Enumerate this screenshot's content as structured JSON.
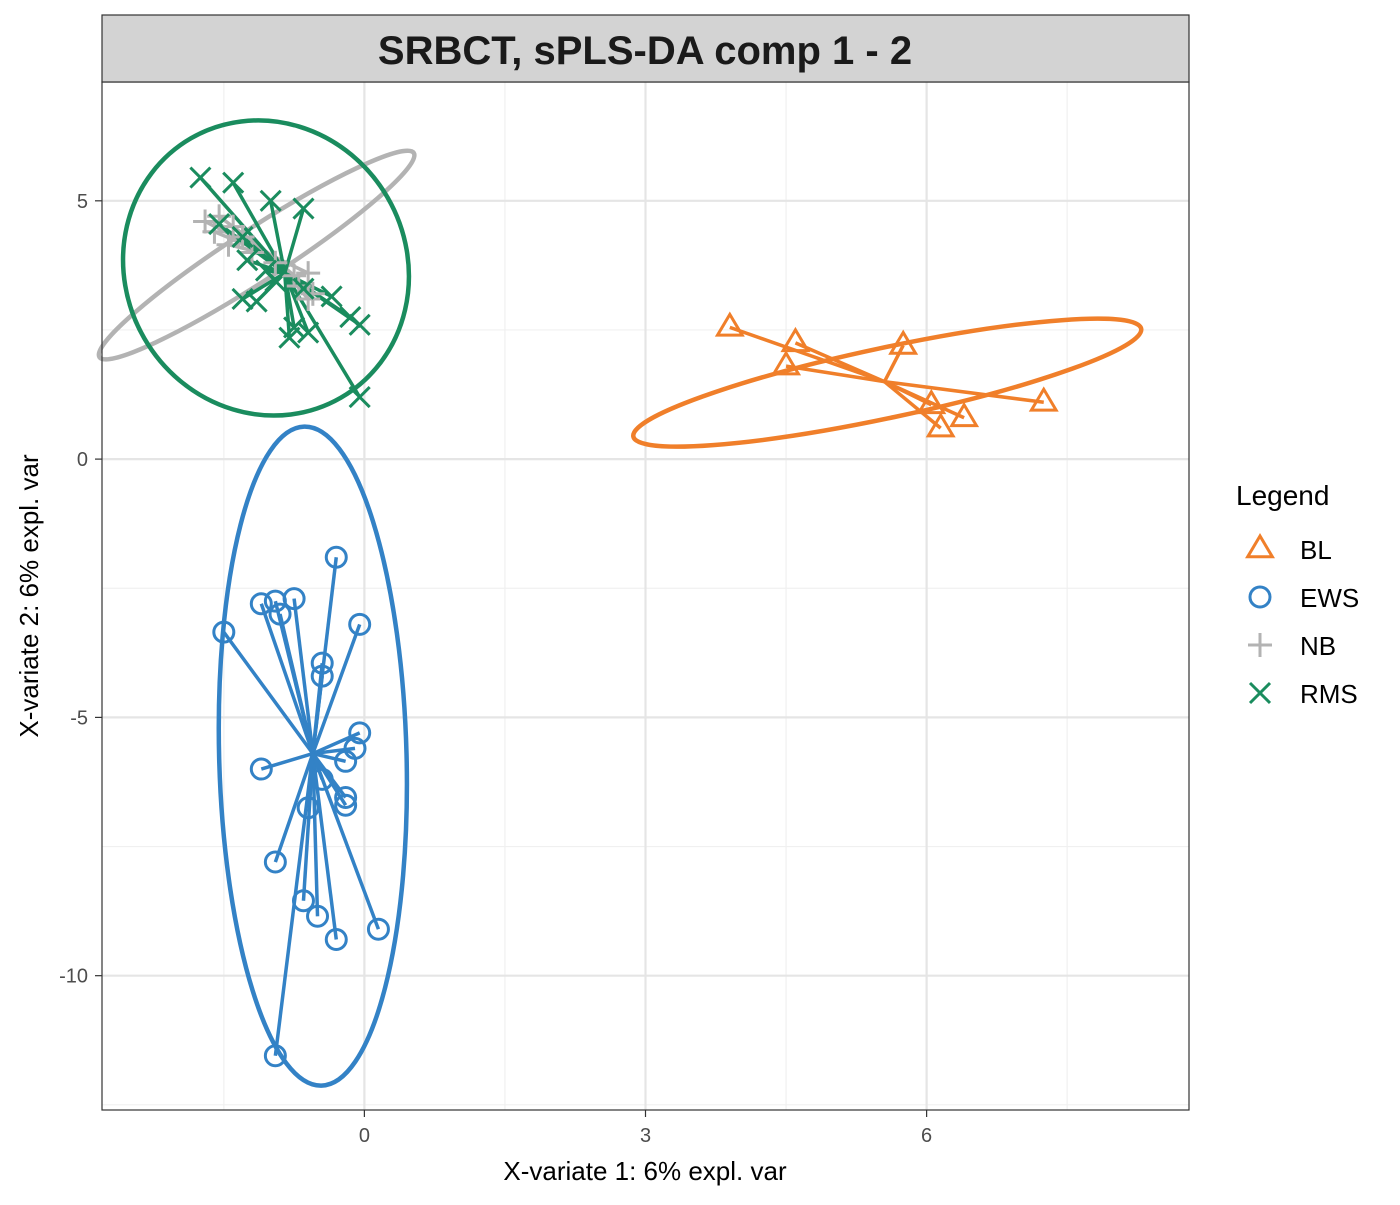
{
  "chart_data": {
    "type": "scatter",
    "title": "SRBCT, sPLS-DA comp 1 - 2",
    "xlabel": "X-variate 1: 6% expl. var",
    "ylabel": "X-variate 2: 6% expl. var",
    "xlim": [
      -2.8,
      8.8
    ],
    "ylim": [
      -12.6,
      7.3
    ],
    "x_ticks": [
      0,
      3,
      6
    ],
    "x_minor_ticks": [
      -1.5,
      1.5,
      4.5,
      7.5
    ],
    "y_ticks": [
      5,
      0,
      -5,
      -10
    ],
    "y_minor_ticks": [
      2.5,
      -2.5,
      -7.5,
      -12.5
    ],
    "grid": true,
    "legend_position": "right",
    "legend_title": "Legend",
    "series": [
      {
        "name": "BL",
        "color": "#F07F2A",
        "marker": "triangle",
        "centroid": [
          5.55,
          1.5
        ],
        "ellipse": {
          "cx": 5.58,
          "cy": 1.48,
          "rx": 2.77,
          "ry": 0.68,
          "angle": -12
        },
        "points": [
          [
            3.9,
            2.55
          ],
          [
            4.6,
            2.25
          ],
          [
            4.5,
            1.8
          ],
          [
            5.75,
            2.2
          ],
          [
            6.05,
            1.05
          ],
          [
            6.15,
            0.6
          ],
          [
            6.4,
            0.8
          ],
          [
            7.25,
            1.1
          ]
        ]
      },
      {
        "name": "EWS",
        "color": "#3382C6",
        "marker": "circle",
        "centroid": [
          -0.55,
          -5.7
        ],
        "ellipse": {
          "cx": -0.55,
          "cy": -5.75,
          "rx": 1.0,
          "ry": 6.38,
          "angle": -1.5
        },
        "points": [
          [
            -1.5,
            -3.35
          ],
          [
            -1.1,
            -2.8
          ],
          [
            -0.95,
            -2.75
          ],
          [
            -0.75,
            -2.7
          ],
          [
            -0.9,
            -3.0
          ],
          [
            -0.3,
            -1.9
          ],
          [
            -0.05,
            -3.2
          ],
          [
            -0.45,
            -3.95
          ],
          [
            -0.45,
            -4.2
          ],
          [
            -0.05,
            -5.3
          ],
          [
            -0.1,
            -5.6
          ],
          [
            -0.2,
            -5.85
          ],
          [
            -1.1,
            -6.0
          ],
          [
            -0.45,
            -6.2
          ],
          [
            -0.2,
            -6.55
          ],
          [
            -0.2,
            -6.7
          ],
          [
            -0.6,
            -6.75
          ],
          [
            -0.95,
            -7.8
          ],
          [
            -0.65,
            -8.55
          ],
          [
            -0.5,
            -8.85
          ],
          [
            -0.3,
            -9.3
          ],
          [
            0.15,
            -9.1
          ],
          [
            -0.95,
            -11.55
          ]
        ]
      },
      {
        "name": "NB",
        "color": "#B3B3B3",
        "marker": "plus",
        "centroid": [
          -1.0,
          3.95
        ],
        "ellipse": {
          "cx": -1.15,
          "cy": 3.95,
          "rx": 2.0,
          "ry": 0.5,
          "angle": -33
        },
        "points": [
          [
            -1.7,
            4.6
          ],
          [
            -1.6,
            4.4
          ],
          [
            -1.55,
            4.7
          ],
          [
            -1.4,
            4.5
          ],
          [
            -1.3,
            4.3
          ],
          [
            -1.45,
            4.15
          ],
          [
            -1.2,
            4.0
          ],
          [
            -0.95,
            3.8
          ],
          [
            -0.75,
            3.55
          ],
          [
            -0.6,
            3.6
          ],
          [
            -0.7,
            3.35
          ],
          [
            -0.55,
            3.2
          ],
          [
            -0.6,
            3.1
          ]
        ]
      },
      {
        "name": "RMS",
        "color": "#1A8C5E",
        "marker": "x",
        "centroid": [
          -0.85,
          3.6
        ],
        "ellipse": {
          "cx": -1.05,
          "cy": 3.7,
          "rx": 1.5,
          "ry": 2.9,
          "angle": -30
        },
        "points": [
          [
            -1.75,
            5.45
          ],
          [
            -1.4,
            5.35
          ],
          [
            -1.0,
            5.0
          ],
          [
            -0.65,
            4.85
          ],
          [
            -1.55,
            4.55
          ],
          [
            -1.3,
            4.3
          ],
          [
            -1.25,
            3.85
          ],
          [
            -1.05,
            3.65
          ],
          [
            -0.95,
            3.45
          ],
          [
            -1.3,
            3.1
          ],
          [
            -1.15,
            3.05
          ],
          [
            -0.65,
            3.3
          ],
          [
            -0.35,
            3.15
          ],
          [
            -0.15,
            2.75
          ],
          [
            -0.05,
            2.6
          ],
          [
            -0.75,
            2.55
          ],
          [
            -0.6,
            2.45
          ],
          [
            -0.8,
            2.35
          ],
          [
            -0.05,
            1.2
          ]
        ]
      }
    ]
  }
}
